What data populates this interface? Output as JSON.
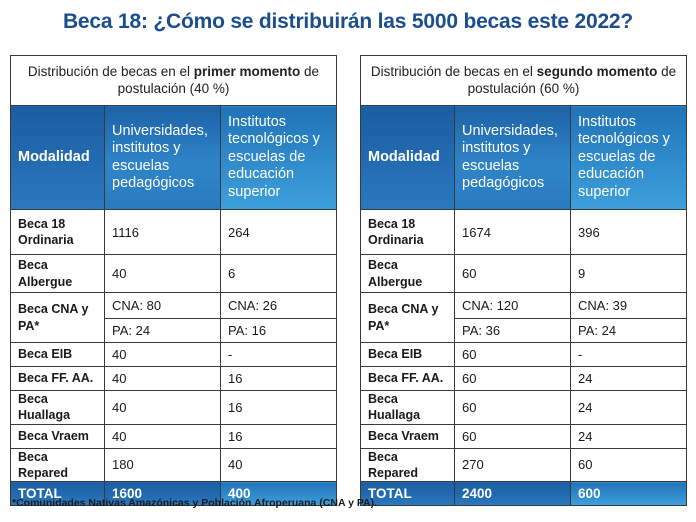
{
  "title": "Beca 18: ¿Cómo se distribuirán las 5000 becas este 2022?",
  "headers": {
    "modalidad": "Modalidad",
    "universidades": "Universidades, institutos y escuelas pedagógicos",
    "institutos": "Institutos tecnológicos y escuelas de educación superior"
  },
  "panels": [
    {
      "caption_pre": "Distribución de becas en el ",
      "caption_bold": "primer momento",
      "caption_post": " de postulación (40 %)",
      "rows": {
        "ordinaria": {
          "label": "Beca 18 Ordinaria",
          "uni": "1116",
          "inst": "264"
        },
        "albergue": {
          "label": "Beca Albergue",
          "uni": "40",
          "inst": "6"
        },
        "cna": {
          "label": "Beca CNA y PA*",
          "uni_cna": "CNA: 80",
          "inst_cna": "CNA: 26",
          "uni_pa": "PA: 24",
          "inst_pa": "PA: 16"
        },
        "eib": {
          "label": "Beca EIB",
          "uni": "40",
          "inst": "-"
        },
        "ffaa": {
          "label": "Beca FF. AA.",
          "uni": "40",
          "inst": "16"
        },
        "huallaga": {
          "label": "Beca Huallaga",
          "uni": "40",
          "inst": "16"
        },
        "vraem": {
          "label": "Beca Vraem",
          "uni": "40",
          "inst": "16"
        },
        "repared": {
          "label": "Beca Repared",
          "uni": "180",
          "inst": "40"
        }
      },
      "total": {
        "label": "TOTAL",
        "uni": "1600",
        "inst": "400"
      }
    },
    {
      "caption_pre": "Distribución de becas en el ",
      "caption_bold": "segundo momento",
      "caption_post": " de postulación (60 %)",
      "rows": {
        "ordinaria": {
          "label": "Beca 18 Ordinaria",
          "uni": "1674",
          "inst": "396"
        },
        "albergue": {
          "label": "Beca Albergue",
          "uni": "60",
          "inst": "9"
        },
        "cna": {
          "label": "Beca CNA y PA*",
          "uni_cna": "CNA: 120",
          "inst_cna": "CNA: 39",
          "uni_pa": "PA: 36",
          "inst_pa": "PA: 24"
        },
        "eib": {
          "label": "Beca EIB",
          "uni": "60",
          "inst": "-"
        },
        "ffaa": {
          "label": "Beca FF. AA.",
          "uni": "60",
          "inst": "24"
        },
        "huallaga": {
          "label": "Beca Huallaga",
          "uni": "60",
          "inst": "24"
        },
        "vraem": {
          "label": "Beca Vraem",
          "uni": "60",
          "inst": "24"
        },
        "repared": {
          "label": "Beca Repared",
          "uni": "270",
          "inst": "60"
        }
      },
      "total": {
        "label": "TOTAL",
        "uni": "2400",
        "inst": "600"
      }
    }
  ],
  "footnote": "*Comunidades Nativas Amazónicas y Población Afroperuana (CNA y PA)."
}
